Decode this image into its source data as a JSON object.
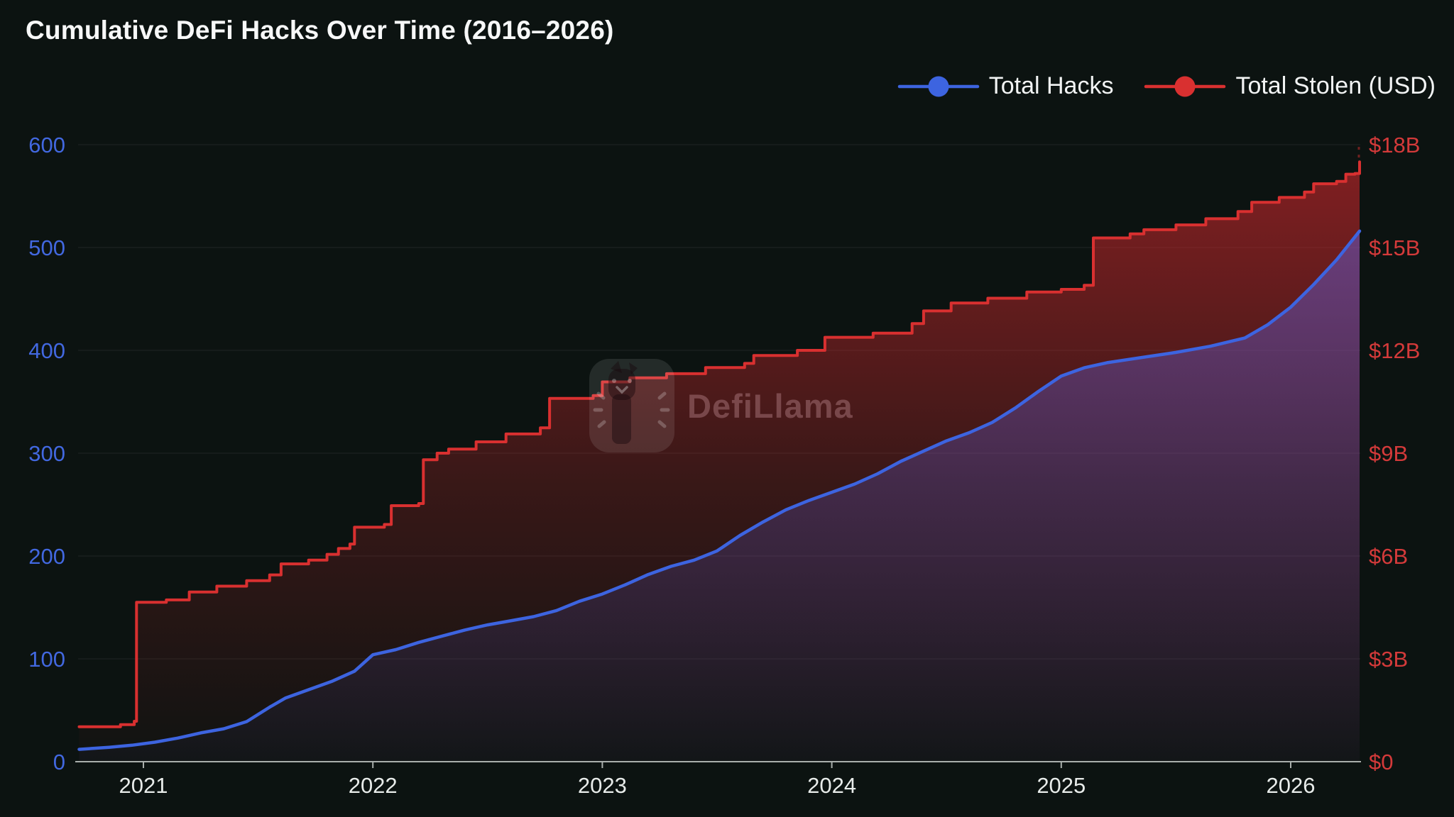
{
  "chart_data": {
    "type": "line",
    "title": "Cumulative DeFi Hacks Over Time (2016–2026)",
    "watermark": "DefiLlama",
    "background": "#0c1311",
    "grid": {
      "color": "rgba(255,255,255,0.06)",
      "horizontal": true,
      "vertical": false
    },
    "x_axis": {
      "range": [
        2020.72,
        2026.3
      ],
      "tick_values": [
        2021,
        2022,
        2023,
        2024,
        2025,
        2026
      ],
      "tick_labels": [
        "2021",
        "2022",
        "2023",
        "2024",
        "2025",
        "2026"
      ],
      "line_color": "#a9afac",
      "label_color": "#e8ecea"
    },
    "y_left": {
      "title": "Total Hacks",
      "range": [
        0,
        600
      ],
      "tick_values": [
        600,
        500,
        400,
        300,
        200,
        100,
        0
      ],
      "tick_labels": [
        "600",
        "500",
        "400",
        "300",
        "200",
        "100",
        "0"
      ],
      "label_color": "#4268e0"
    },
    "y_right": {
      "title": "Total Stolen (USD)",
      "range_billions": [
        0,
        18
      ],
      "tick_values": [
        18,
        15,
        12,
        9,
        6,
        3,
        0
      ],
      "tick_labels": [
        "$18B",
        "$15B",
        "$12B",
        "$9B",
        "$6B",
        "$3B",
        "$0"
      ],
      "label_color": "#d43a3a"
    },
    "legend": [
      {
        "label": "Total Hacks",
        "color": "#3d64e0",
        "marker": "line-dot"
      },
      {
        "label": "Total Stolen (USD)",
        "color": "#d93030",
        "marker": "line-dot"
      }
    ],
    "series": [
      {
        "name": "Total Hacks",
        "axis": "left",
        "color": "#3d64e0",
        "style": "linear",
        "points": [
          [
            2020.72,
            12
          ],
          [
            2020.85,
            14
          ],
          [
            2020.95,
            16
          ],
          [
            2021.05,
            19
          ],
          [
            2021.15,
            23
          ],
          [
            2021.25,
            28
          ],
          [
            2021.35,
            32
          ],
          [
            2021.45,
            39
          ],
          [
            2021.55,
            53
          ],
          [
            2021.62,
            62
          ],
          [
            2021.72,
            70
          ],
          [
            2021.82,
            78
          ],
          [
            2021.92,
            88
          ],
          [
            2022.0,
            104
          ],
          [
            2022.1,
            109
          ],
          [
            2022.2,
            116
          ],
          [
            2022.3,
            122
          ],
          [
            2022.4,
            128
          ],
          [
            2022.5,
            133
          ],
          [
            2022.6,
            137
          ],
          [
            2022.7,
            141
          ],
          [
            2022.8,
            147
          ],
          [
            2022.9,
            156
          ],
          [
            2023.0,
            163
          ],
          [
            2023.1,
            172
          ],
          [
            2023.2,
            182
          ],
          [
            2023.3,
            190
          ],
          [
            2023.4,
            196
          ],
          [
            2023.5,
            205
          ],
          [
            2023.6,
            220
          ],
          [
            2023.7,
            233
          ],
          [
            2023.8,
            245
          ],
          [
            2023.9,
            254
          ],
          [
            2024.0,
            262
          ],
          [
            2024.1,
            270
          ],
          [
            2024.2,
            280
          ],
          [
            2024.3,
            292
          ],
          [
            2024.4,
            302
          ],
          [
            2024.5,
            312
          ],
          [
            2024.6,
            320
          ],
          [
            2024.7,
            330
          ],
          [
            2024.8,
            344
          ],
          [
            2024.9,
            360
          ],
          [
            2025.0,
            375
          ],
          [
            2025.1,
            383
          ],
          [
            2025.2,
            388
          ],
          [
            2025.35,
            393
          ],
          [
            2025.5,
            398
          ],
          [
            2025.65,
            404
          ],
          [
            2025.8,
            412
          ],
          [
            2025.9,
            425
          ],
          [
            2026.0,
            442
          ],
          [
            2026.1,
            464
          ],
          [
            2026.2,
            488
          ],
          [
            2026.3,
            516
          ]
        ]
      },
      {
        "name": "Total Stolen (USD)",
        "axis": "right",
        "color": "#d93030",
        "style": "step",
        "unit": "billion USD",
        "points": [
          [
            2020.72,
            1.02
          ],
          [
            2020.9,
            1.08
          ],
          [
            2020.96,
            1.18
          ],
          [
            2020.97,
            4.65
          ],
          [
            2021.1,
            4.72
          ],
          [
            2021.2,
            4.95
          ],
          [
            2021.32,
            5.12
          ],
          [
            2021.45,
            5.28
          ],
          [
            2021.55,
            5.45
          ],
          [
            2021.6,
            5.77
          ],
          [
            2021.72,
            5.88
          ],
          [
            2021.8,
            6.05
          ],
          [
            2021.85,
            6.22
          ],
          [
            2021.9,
            6.35
          ],
          [
            2021.92,
            6.84
          ],
          [
            2022.05,
            6.92
          ],
          [
            2022.08,
            7.47
          ],
          [
            2022.2,
            7.53
          ],
          [
            2022.22,
            8.81
          ],
          [
            2022.28,
            9.0
          ],
          [
            2022.33,
            9.12
          ],
          [
            2022.45,
            9.33
          ],
          [
            2022.58,
            9.56
          ],
          [
            2022.73,
            9.74
          ],
          [
            2022.77,
            10.6
          ],
          [
            2022.96,
            10.68
          ],
          [
            2023.0,
            11.08
          ],
          [
            2023.12,
            11.2
          ],
          [
            2023.28,
            11.32
          ],
          [
            2023.45,
            11.5
          ],
          [
            2023.62,
            11.62
          ],
          [
            2023.66,
            11.85
          ],
          [
            2023.85,
            12.0
          ],
          [
            2023.97,
            12.38
          ],
          [
            2024.18,
            12.5
          ],
          [
            2024.35,
            12.78
          ],
          [
            2024.4,
            13.15
          ],
          [
            2024.52,
            13.38
          ],
          [
            2024.68,
            13.52
          ],
          [
            2024.85,
            13.7
          ],
          [
            2025.0,
            13.78
          ],
          [
            2025.1,
            13.9
          ],
          [
            2025.14,
            15.28
          ],
          [
            2025.3,
            15.4
          ],
          [
            2025.36,
            15.52
          ],
          [
            2025.5,
            15.66
          ],
          [
            2025.63,
            15.84
          ],
          [
            2025.77,
            16.05
          ],
          [
            2025.83,
            16.32
          ],
          [
            2025.95,
            16.46
          ],
          [
            2026.06,
            16.62
          ],
          [
            2026.1,
            16.86
          ],
          [
            2026.2,
            16.93
          ],
          [
            2026.24,
            17.14
          ],
          [
            2026.28,
            17.16
          ],
          [
            2026.3,
            17.5
          ]
        ]
      }
    ]
  }
}
